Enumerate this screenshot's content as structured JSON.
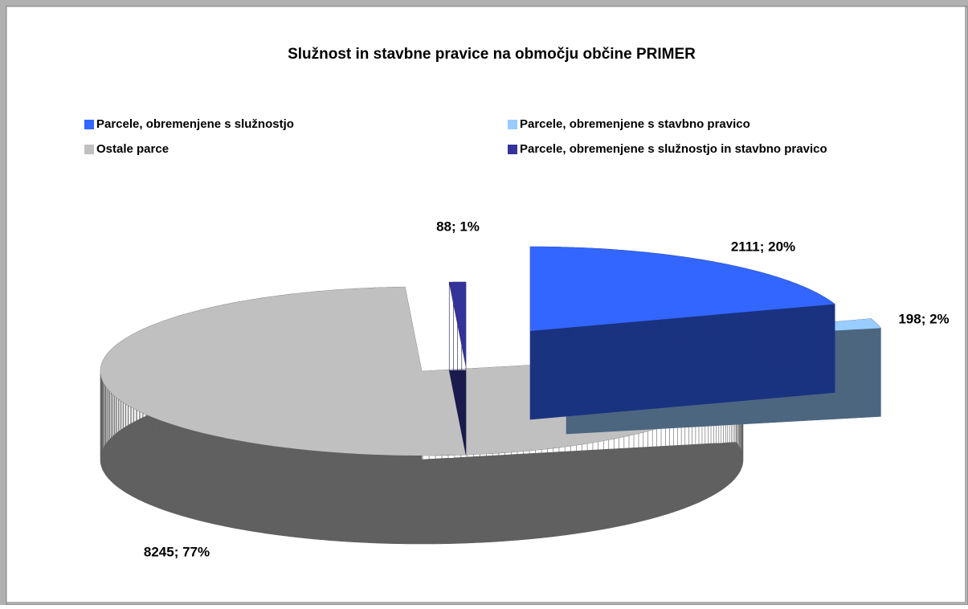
{
  "chart_data": {
    "type": "pie",
    "title": "Služnost in stavbne pravice na območju občine PRIMER",
    "categories": [
      "Parcele, obremenjene s služnostjo",
      "Parcele, obremenjene s stavbno pravico",
      "Ostale parce",
      "Parcele, obremenjene s služnostjo in stavbno pravico"
    ],
    "values": [
      2111,
      198,
      8245,
      88
    ],
    "value_labels": [
      "2111; 20%",
      "198; 2%",
      "8245; 77%",
      "88; 1%"
    ],
    "colors": [
      "#3366ff",
      "#99ccff",
      "#c0c0c0",
      "#333399"
    ],
    "three_d": true,
    "legend": "top"
  }
}
